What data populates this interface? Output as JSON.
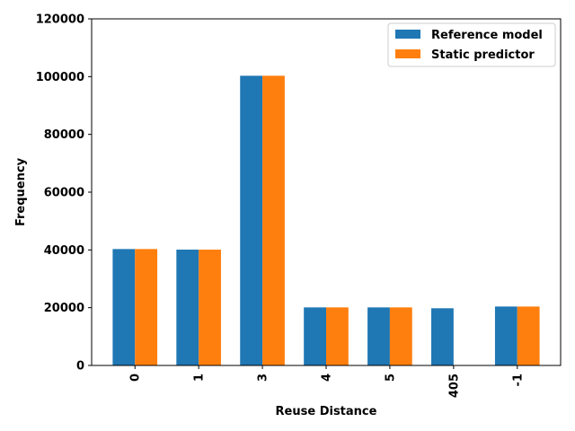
{
  "chart_data": {
    "type": "bar",
    "title": "",
    "xlabel": "Reuse Distance",
    "ylabel": "Frequency",
    "categories": [
      "0",
      "1",
      "3",
      "4",
      "5",
      "405",
      "-1"
    ],
    "series": [
      {
        "name": "Reference model",
        "color": "#1f77b4",
        "values": [
          40300,
          40100,
          100300,
          20100,
          20100,
          19800,
          20400
        ]
      },
      {
        "name": "Static predictor",
        "color": "#ff7f0e",
        "values": [
          40300,
          40100,
          100300,
          20100,
          20100,
          0,
          20400
        ]
      }
    ],
    "ylim": [
      0,
      120000
    ],
    "yticks": [
      "0",
      "20000",
      "40000",
      "60000",
      "80000",
      "100000",
      "120000"
    ],
    "grid": false,
    "legend_position": "top-right",
    "x_tick_rotation": "vertical"
  }
}
